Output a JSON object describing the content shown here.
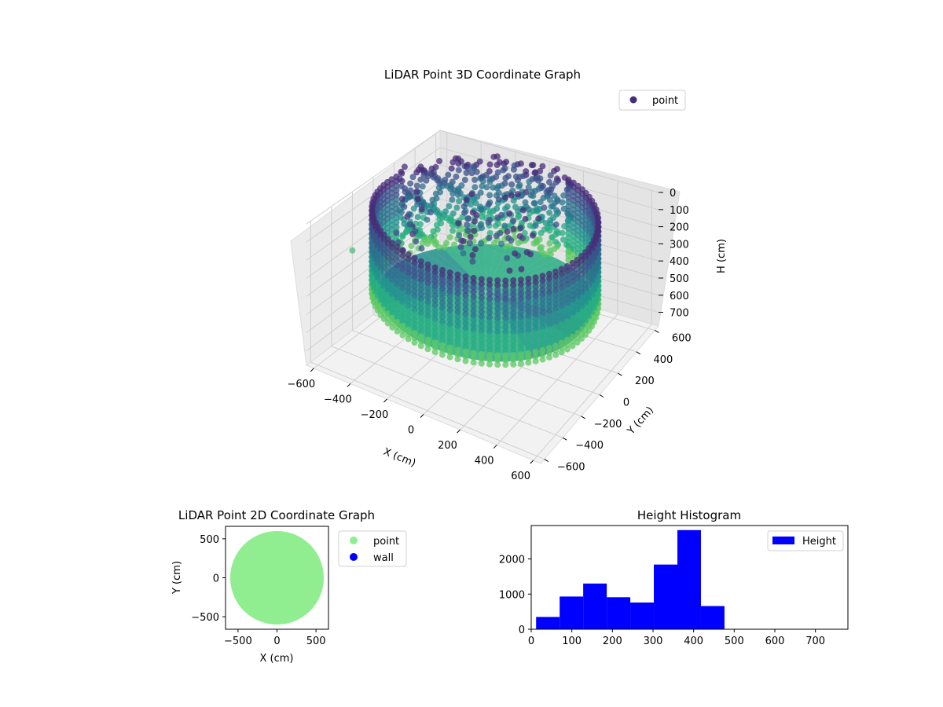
{
  "chart_data": [
    {
      "type": "scatter3d",
      "title": "LiDAR Point 3D Coordinate Graph",
      "xlabel": "X (cm)",
      "ylabel": "Y (cm)",
      "zlabel": "H (cm)",
      "xticks": [
        -600,
        -400,
        -200,
        0,
        200,
        400,
        600
      ],
      "yticks": [
        -600,
        -400,
        -200,
        0,
        200,
        400,
        600
      ],
      "zticks": [
        0,
        100,
        200,
        300,
        400,
        500,
        600,
        700
      ],
      "xlim": [
        -640,
        640
      ],
      "ylim": [
        -640,
        640
      ],
      "zlim": [
        780,
        0
      ],
      "legend": {
        "entries": [
          {
            "label": "point",
            "color": "#472c7a"
          }
        ],
        "placement": "top-right"
      },
      "colormap": "viridis",
      "description_points": {
        "ring_radius": 560,
        "ring_height_range": [
          0,
          480
        ]
      }
    },
    {
      "type": "scatter",
      "title": "LiDAR Point 2D Coordinate Graph",
      "xlabel": "X (cm)",
      "ylabel": "Y (cm)",
      "xticks": [
        -500,
        0,
        500
      ],
      "yticks": [
        -500,
        0,
        500
      ],
      "xlim": [
        -660,
        660
      ],
      "ylim": [
        -660,
        660
      ],
      "series": [
        {
          "name": "point",
          "color": "#90ee90",
          "shape": "disk",
          "radius": 600
        },
        {
          "name": "wall",
          "color": "#0000ff",
          "values": []
        }
      ],
      "legend_placement": "outside-right"
    },
    {
      "type": "bar",
      "title": "Height Histogram",
      "xlabel": "",
      "ylabel": "",
      "xlim": [
        0,
        780
      ],
      "ylim": [
        0,
        2950
      ],
      "xticks": [
        0,
        100,
        200,
        300,
        400,
        500,
        600,
        700
      ],
      "yticks": [
        0,
        1000,
        2000
      ],
      "bins": [
        {
          "start": 12,
          "end": 70,
          "value": 350
        },
        {
          "start": 70,
          "end": 128,
          "value": 930
        },
        {
          "start": 128,
          "end": 186,
          "value": 1300
        },
        {
          "start": 186,
          "end": 244,
          "value": 910
        },
        {
          "start": 244,
          "end": 302,
          "value": 760
        },
        {
          "start": 302,
          "end": 360,
          "value": 1840
        },
        {
          "start": 360,
          "end": 418,
          "value": 2820
        },
        {
          "start": 418,
          "end": 476,
          "value": 660
        }
      ],
      "bar_color": "#0000ff",
      "legend": {
        "entries": [
          {
            "label": "Height",
            "color": "#0000ff"
          }
        ],
        "placement": "top-right"
      }
    }
  ]
}
